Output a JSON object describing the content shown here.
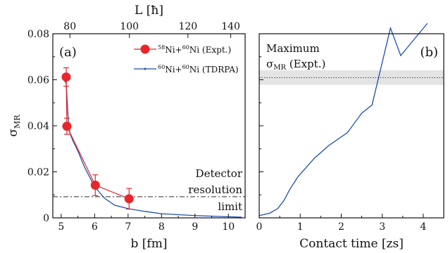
{
  "chart_data": [
    {
      "panel_label": "(a)",
      "type": "line",
      "xlabel": "b [fm]",
      "ylabel": "σ",
      "ylabel_sub": "MR",
      "top_xlabel": "L [ħ]",
      "xlim": [
        4.75,
        10.5
      ],
      "ylim": [
        0,
        0.08
      ],
      "x_ticks": [
        "5",
        "6",
        "7",
        "8",
        "9",
        "10"
      ],
      "y_ticks": [
        "0",
        "0.02",
        "0.04",
        "0.06",
        "0.08"
      ],
      "top_ticks": [
        {
          "label": "80",
          "b": 5.26
        },
        {
          "label": "100",
          "b": 7.04
        },
        {
          "label": "120",
          "b": 8.79
        },
        {
          "label": "140",
          "b": 10.07
        }
      ],
      "series": [
        {
          "name_parts": [
            {
              "t": "58",
              "sup": true
            },
            {
              "t": "Ni+",
              "sup": false
            },
            {
              "t": "60",
              "sup": true
            },
            {
              "t": "Ni (Expt.)",
              "sup": false
            }
          ],
          "color": "#e8262b",
          "x": [
            5.15,
            5.17,
            6.02,
            7.03
          ],
          "y": [
            0.0612,
            0.0398,
            0.0142,
            0.0083
          ],
          "yerr": [
            0.004,
            0.0035,
            0.0045,
            0.0045
          ]
        },
        {
          "name_parts": [
            {
              "t": "60",
              "sup": true
            },
            {
              "t": "Ni+",
              "sup": false
            },
            {
              "t": "60",
              "sup": true
            },
            {
              "t": "Ni (TDRPA)",
              "sup": false
            }
          ],
          "color": "#1f4ea8",
          "x": [
            5.1,
            5.15,
            5.2,
            5.26,
            5.35,
            5.5,
            5.7,
            6.0,
            6.3,
            6.6,
            7.0,
            7.5,
            8.0,
            9.0,
            10.0,
            10.4
          ],
          "y": [
            0.0595,
            0.0585,
            0.045,
            0.0368,
            0.0335,
            0.029,
            0.022,
            0.0135,
            0.0085,
            0.0055,
            0.004,
            0.0028,
            0.0018,
            0.001,
            0.0005,
            0.0003
          ]
        }
      ],
      "detector_limit": 0.0092,
      "annotation_lines": [
        "Detector",
        "resolution",
        "limit"
      ]
    },
    {
      "panel_label": "(b)",
      "type": "line",
      "xlabel": "Contact time [zs]",
      "xlim": [
        0,
        4.5
      ],
      "ylim": [
        0,
        0.08
      ],
      "x_ticks": [
        "0",
        "1",
        "2",
        "3",
        "4"
      ],
      "series": [
        {
          "color": "#1f4ea8",
          "x": [
            0.0,
            0.25,
            0.45,
            0.6,
            0.75,
            0.95,
            1.35,
            1.7,
            2.15,
            2.5,
            2.75,
            3.2,
            3.45,
            4.1
          ],
          "y": [
            0.001,
            0.002,
            0.004,
            0.0075,
            0.0125,
            0.018,
            0.026,
            0.0315,
            0.037,
            0.0455,
            0.049,
            0.0825,
            0.0705,
            0.0845
          ]
        }
      ],
      "maximum_band": {
        "center": 0.0609,
        "low": 0.0578,
        "high": 0.0641
      },
      "annotation_lines": [
        "Maximum",
        "σ",
        "MR",
        " (Expt.)"
      ]
    }
  ]
}
